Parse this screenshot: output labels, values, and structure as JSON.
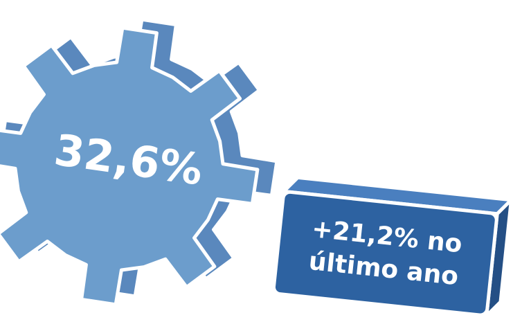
{
  "gear": {
    "label": "32,6%"
  },
  "badge": {
    "lines": [
      "+21,2% no",
      "último ano"
    ]
  }
}
